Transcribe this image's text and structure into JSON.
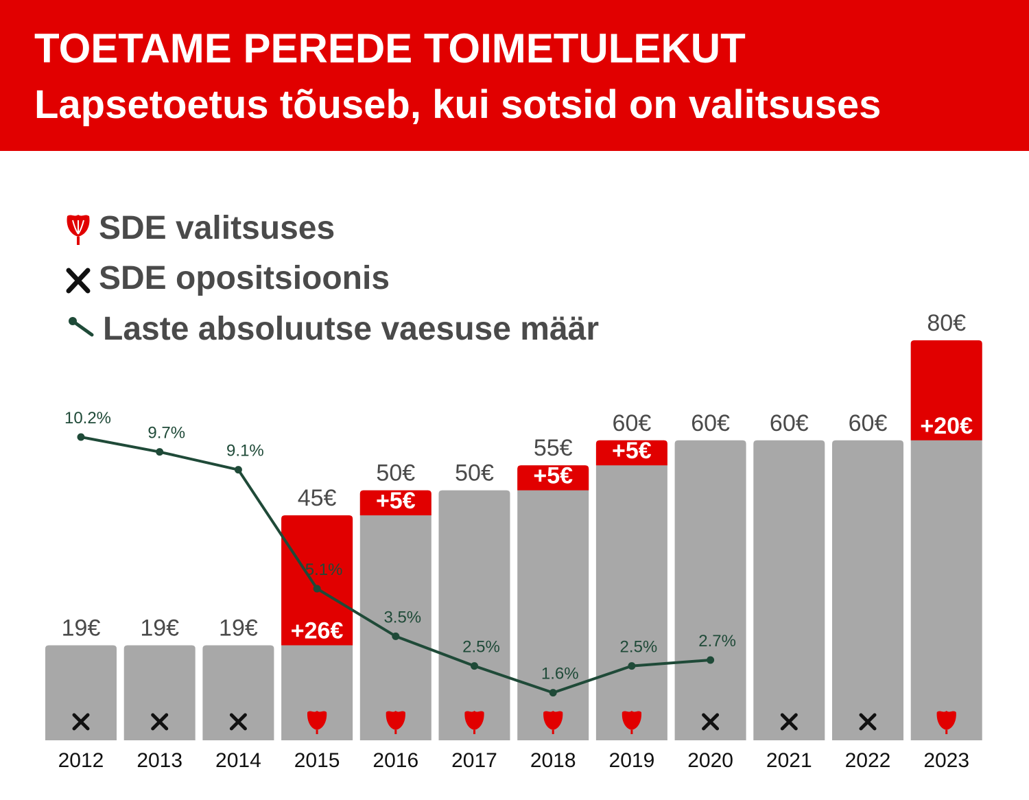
{
  "header": {
    "title": "TOETAME PEREDE TOIMETULEKUT",
    "subtitle": "Lapsetoetus tõuseb, kui sotsid on valitsuses"
  },
  "legend": {
    "in_government": "SDE valitsuses",
    "opposition": "SDE opositsioonis",
    "poverty_rate": "Laste absoluutse vaesuse määr"
  },
  "colors": {
    "header_bg": "#e10000",
    "bar_gray": "#a8a8a8",
    "increase_red": "#e10000",
    "line_green": "#1f4a38",
    "value_text": "#4a4a4a"
  },
  "icons": {
    "in_government": "rose-icon",
    "opposition": "cross-icon",
    "poverty_rate": "line-marker-icon"
  },
  "chart_data": {
    "type": "bar",
    "categories": [
      "2012",
      "2013",
      "2014",
      "2015",
      "2016",
      "2017",
      "2018",
      "2019",
      "2020",
      "2021",
      "2022",
      "2023"
    ],
    "bar_values": [
      19,
      19,
      19,
      45,
      50,
      50,
      55,
      60,
      60,
      60,
      60,
      80
    ],
    "bar_labels": [
      "19€",
      "19€",
      "19€",
      "45€",
      "50€",
      "50€",
      "55€",
      "60€",
      "60€",
      "60€",
      "60€",
      "80€"
    ],
    "increase_values": [
      0,
      0,
      0,
      26,
      5,
      0,
      5,
      5,
      0,
      0,
      0,
      20
    ],
    "increase_labels": [
      "",
      "",
      "",
      "+26€",
      "+5€",
      "",
      "+5€",
      "+5€",
      "",
      "",
      "",
      "+20€"
    ],
    "sde_status": [
      "opposition",
      "opposition",
      "opposition",
      "government",
      "government",
      "government",
      "government",
      "government",
      "opposition",
      "opposition",
      "opposition",
      "government"
    ],
    "ylim": [
      0,
      80
    ],
    "line": {
      "x": [
        "2012",
        "2013",
        "2014",
        "2015",
        "2016",
        "2017",
        "2018",
        "2019",
        "2020"
      ],
      "values": [
        10.2,
        9.7,
        9.1,
        5.1,
        3.5,
        2.5,
        1.6,
        2.5,
        2.7
      ],
      "labels": [
        "10.2%",
        "9.7%",
        "9.1%",
        "5.1%",
        "3.5%",
        "2.5%",
        "1.6%",
        "2.5%",
        "2.7%"
      ],
      "ylim": [
        0,
        10.2
      ]
    },
    "grid": false
  }
}
